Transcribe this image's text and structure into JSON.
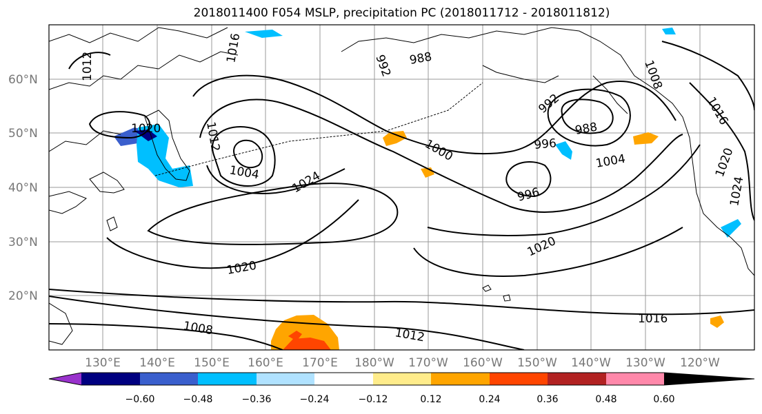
{
  "title": "2018011400 F054 MSLP, precipitation PC (2018011712 - 2018011812)",
  "latitudes": [
    "60°N",
    "50°N",
    "40°N",
    "30°N",
    "20°N"
  ],
  "longitudes": [
    "130°E",
    "140°E",
    "150°E",
    "160°E",
    "170°E",
    "180°W",
    "170°W",
    "160°W",
    "150°W",
    "140°W",
    "130°W",
    "120°W"
  ],
  "isobar_labels": [
    {
      "text": "1012",
      "rot": -90
    },
    {
      "text": "1016",
      "rot": -80
    },
    {
      "text": "992",
      "rot": 70
    },
    {
      "text": "988",
      "rot": -10
    },
    {
      "text": "1020",
      "rot": 0
    },
    {
      "text": "1012",
      "rot": 80
    },
    {
      "text": "1004",
      "rot": 10
    },
    {
      "text": "1024",
      "rot": -30
    },
    {
      "text": "1000",
      "rot": 30
    },
    {
      "text": "992",
      "rot": -40
    },
    {
      "text": "988",
      "rot": -10
    },
    {
      "text": "996",
      "rot": -5
    },
    {
      "text": "1004",
      "rot": -10
    },
    {
      "text": "996",
      "rot": -15
    },
    {
      "text": "1020",
      "rot": -25
    },
    {
      "text": "1020",
      "rot": -10
    },
    {
      "text": "1008",
      "rot": 10
    },
    {
      "text": "1012",
      "rot": 10
    },
    {
      "text": "1016",
      "rot": 0
    },
    {
      "text": "1020",
      "rot": -70
    },
    {
      "text": "1024",
      "rot": -80
    },
    {
      "text": "1016",
      "rot": 60
    },
    {
      "text": "1008",
      "rot": 70
    }
  ],
  "colorbar": {
    "ticks": [
      "−0.60",
      "−0.48",
      "−0.36",
      "−0.24",
      "−0.12",
      "0.12",
      "0.24",
      "0.36",
      "0.48",
      "0.60"
    ],
    "colors": [
      "#9932CC",
      "#000080",
      "#3A5FCD",
      "#00BFFF",
      "#B0E2FF",
      "#FFFFFF",
      "#FFEC8B",
      "#FFA500",
      "#FF4500",
      "#B22222",
      "#FF88AA"
    ]
  }
}
